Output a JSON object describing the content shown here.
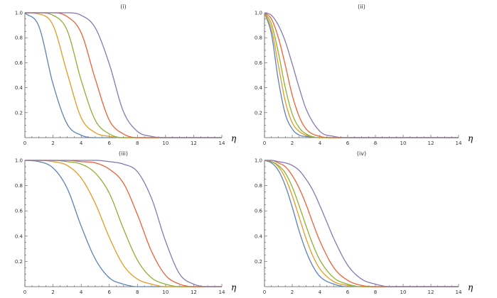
{
  "chart_data": [
    {
      "type": "line",
      "title": "(i)",
      "xlabel": "η",
      "ylabel": "",
      "xlim": [
        0,
        14
      ],
      "ylim": [
        0,
        1
      ],
      "x_ticks": [
        "0",
        "2",
        "4",
        "6",
        "8",
        "10",
        "12",
        "14"
      ],
      "y_ticks": [
        "0.2",
        "0.4",
        "0.6",
        "0.8",
        "1.0"
      ],
      "grid": false,
      "series": [
        {
          "name": "s1",
          "color": "#5e81b5",
          "x": [
            0,
            1,
            2,
            3,
            4,
            5,
            6,
            7,
            8,
            9,
            10,
            11,
            12,
            13,
            14
          ],
          "values": [
            1.0,
            0.89,
            0.43,
            0.11,
            0.02,
            0.0,
            0,
            0,
            0,
            0,
            0,
            0,
            0,
            0,
            0
          ]
        },
        {
          "name": "s2",
          "color": "#e19c24",
          "x": [
            0,
            1,
            2,
            3,
            4,
            5,
            6,
            7,
            8,
            9,
            10,
            11,
            12,
            13,
            14
          ],
          "values": [
            1.0,
            0.99,
            0.9,
            0.52,
            0.16,
            0.04,
            0.01,
            0,
            0,
            0,
            0,
            0,
            0,
            0,
            0
          ]
        },
        {
          "name": "s3",
          "color": "#8fb032",
          "x": [
            0,
            1,
            2,
            3,
            4,
            5,
            6,
            7,
            8,
            9,
            10,
            11,
            12,
            13,
            14
          ],
          "values": [
            1.0,
            1.0,
            0.98,
            0.86,
            0.46,
            0.14,
            0.03,
            0.0,
            0,
            0,
            0,
            0,
            0,
            0,
            0
          ]
        },
        {
          "name": "s4",
          "color": "#eb6235",
          "x": [
            0,
            1,
            2,
            3,
            4,
            5,
            6,
            7,
            8,
            9,
            10,
            11,
            12,
            13,
            14
          ],
          "values": [
            1.0,
            1.0,
            1.0,
            0.97,
            0.84,
            0.47,
            0.14,
            0.03,
            0.0,
            0,
            0,
            0,
            0,
            0,
            0
          ]
        },
        {
          "name": "s5",
          "color": "#8778b3",
          "x": [
            0,
            1,
            2,
            3,
            4,
            5,
            6,
            7,
            8,
            9,
            10,
            11,
            12,
            13,
            14
          ],
          "values": [
            1.0,
            1.0,
            1.0,
            1.0,
            0.98,
            0.88,
            0.59,
            0.21,
            0.05,
            0.01,
            0,
            0,
            0,
            0,
            0
          ]
        }
      ]
    },
    {
      "type": "line",
      "title": "(ii)",
      "xlabel": "η",
      "ylabel": "",
      "xlim": [
        0,
        14
      ],
      "ylim": [
        0,
        1
      ],
      "x_ticks": [
        "0",
        "2",
        "4",
        "6",
        "8",
        "10",
        "12",
        "14"
      ],
      "y_ticks": [
        "0.2",
        "0.4",
        "0.6",
        "0.8",
        "1.0"
      ],
      "grid": false,
      "series": [
        {
          "name": "s1",
          "color": "#5e81b5",
          "x": [
            0,
            0.5,
            1,
            1.5,
            2,
            2.5,
            3,
            4,
            5,
            6,
            14
          ],
          "values": [
            1.0,
            0.83,
            0.46,
            0.19,
            0.07,
            0.02,
            0.01,
            0,
            0,
            0,
            0
          ]
        },
        {
          "name": "s2",
          "color": "#e19c24",
          "x": [
            0,
            0.5,
            1,
            1.5,
            2,
            2.5,
            3,
            4,
            5,
            6,
            14
          ],
          "values": [
            1.0,
            0.87,
            0.58,
            0.29,
            0.12,
            0.05,
            0.02,
            0,
            0,
            0,
            0
          ]
        },
        {
          "name": "s3",
          "color": "#8fb032",
          "x": [
            0,
            0.5,
            1,
            1.5,
            2,
            2.5,
            3,
            4,
            5,
            6,
            14
          ],
          "values": [
            1.0,
            0.91,
            0.68,
            0.4,
            0.19,
            0.08,
            0.03,
            0.0,
            0,
            0,
            0
          ]
        },
        {
          "name": "s4",
          "color": "#eb6235",
          "x": [
            0,
            0.5,
            1,
            1.5,
            2,
            2.5,
            3,
            4,
            5,
            6,
            14
          ],
          "values": [
            1.0,
            0.95,
            0.8,
            0.58,
            0.34,
            0.17,
            0.07,
            0.01,
            0,
            0,
            0
          ]
        },
        {
          "name": "s5",
          "color": "#8778b3",
          "x": [
            0,
            0.5,
            1,
            1.5,
            2,
            2.5,
            3,
            4,
            5,
            6,
            14
          ],
          "values": [
            1.0,
            0.98,
            0.9,
            0.77,
            0.59,
            0.4,
            0.23,
            0.05,
            0.01,
            0,
            0
          ]
        }
      ]
    },
    {
      "type": "line",
      "title": "(iii)",
      "xlabel": "η",
      "ylabel": "",
      "xlim": [
        0,
        14
      ],
      "ylim": [
        0,
        1
      ],
      "x_ticks": [
        "0",
        "2",
        "4",
        "6",
        "8",
        "10",
        "12",
        "14"
      ],
      "y_ticks": [
        "0.2",
        "0.4",
        "0.6",
        "0.8",
        "1.0"
      ],
      "grid": false,
      "series": [
        {
          "name": "s1",
          "color": "#5e81b5",
          "x": [
            0,
            1,
            2,
            3,
            4,
            5,
            6,
            7,
            8,
            9,
            10,
            11,
            12,
            13,
            14
          ],
          "values": [
            1.0,
            0.99,
            0.94,
            0.78,
            0.48,
            0.22,
            0.07,
            0.02,
            0.0,
            0,
            0,
            0,
            0,
            0,
            0
          ]
        },
        {
          "name": "s2",
          "color": "#e19c24",
          "x": [
            0,
            1,
            2,
            3,
            4,
            5,
            6,
            7,
            8,
            9,
            10,
            11,
            12,
            13,
            14
          ],
          "values": [
            1.0,
            1.0,
            0.99,
            0.96,
            0.86,
            0.66,
            0.39,
            0.17,
            0.06,
            0.02,
            0.0,
            0,
            0,
            0,
            0
          ]
        },
        {
          "name": "s3",
          "color": "#8fb032",
          "x": [
            0,
            1,
            2,
            3,
            4,
            5,
            6,
            7,
            8,
            9,
            10,
            11,
            12,
            13,
            14
          ],
          "values": [
            1.0,
            1.0,
            1.0,
            0.99,
            0.97,
            0.9,
            0.74,
            0.46,
            0.21,
            0.07,
            0.02,
            0.0,
            0,
            0,
            0
          ]
        },
        {
          "name": "s4",
          "color": "#eb6235",
          "x": [
            0,
            1,
            2,
            3,
            4,
            5,
            6,
            7,
            8,
            9,
            10,
            11,
            12,
            13,
            14
          ],
          "values": [
            1.0,
            1.0,
            1.0,
            1.0,
            0.99,
            0.98,
            0.93,
            0.82,
            0.57,
            0.28,
            0.09,
            0.02,
            0.0,
            0,
            0
          ]
        },
        {
          "name": "s5",
          "color": "#8778b3",
          "x": [
            0,
            1,
            2,
            3,
            4,
            5,
            6,
            7,
            8,
            9,
            10,
            11,
            12,
            13,
            14
          ],
          "values": [
            1.0,
            1.0,
            1.0,
            1.0,
            1.0,
            1.0,
            0.99,
            0.97,
            0.91,
            0.7,
            0.36,
            0.1,
            0.02,
            0.0,
            0
          ]
        }
      ]
    },
    {
      "type": "line",
      "title": "(iv)",
      "xlabel": "η",
      "ylabel": "",
      "xlim": [
        0,
        14
      ],
      "ylim": [
        0,
        1
      ],
      "x_ticks": [
        "0",
        "2",
        "4",
        "6",
        "8",
        "10",
        "12",
        "14"
      ],
      "y_ticks": [
        "0.2",
        "0.4",
        "0.6",
        "0.8",
        "1.0"
      ],
      "grid": false,
      "series": [
        {
          "name": "s1",
          "color": "#5e81b5",
          "x": [
            0,
            0.5,
            1,
            1.5,
            2,
            2.5,
            3,
            3.5,
            4,
            5,
            6,
            7,
            8,
            14
          ],
          "values": [
            1.0,
            0.98,
            0.92,
            0.8,
            0.63,
            0.44,
            0.28,
            0.16,
            0.08,
            0.02,
            0,
            0,
            0,
            0
          ]
        },
        {
          "name": "s2",
          "color": "#e19c24",
          "x": [
            0,
            0.5,
            1,
            1.5,
            2,
            2.5,
            3,
            3.5,
            4,
            5,
            6,
            7,
            8,
            14
          ],
          "values": [
            1.0,
            0.99,
            0.95,
            0.86,
            0.72,
            0.55,
            0.38,
            0.24,
            0.14,
            0.04,
            0.01,
            0,
            0,
            0
          ]
        },
        {
          "name": "s3",
          "color": "#8fb032",
          "x": [
            0,
            0.5,
            1,
            1.5,
            2,
            2.5,
            3,
            3.5,
            4,
            5,
            6,
            7,
            8,
            14
          ],
          "values": [
            1.0,
            0.99,
            0.96,
            0.9,
            0.79,
            0.64,
            0.48,
            0.33,
            0.21,
            0.07,
            0.02,
            0,
            0,
            0
          ]
        },
        {
          "name": "s4",
          "color": "#eb6235",
          "x": [
            0,
            0.5,
            1,
            1.5,
            2,
            2.5,
            3,
            3.5,
            4,
            5,
            6,
            7,
            8,
            14
          ],
          "values": [
            1.0,
            1.0,
            0.98,
            0.95,
            0.88,
            0.78,
            0.65,
            0.5,
            0.36,
            0.15,
            0.05,
            0.01,
            0,
            0
          ]
        },
        {
          "name": "s5",
          "color": "#8778b3",
          "x": [
            0,
            0.5,
            1,
            1.5,
            2,
            2.5,
            3,
            3.5,
            4,
            4.5,
            5,
            6,
            7,
            8,
            9,
            14
          ],
          "values": [
            1.0,
            1.0,
            0.99,
            0.98,
            0.96,
            0.92,
            0.85,
            0.76,
            0.64,
            0.51,
            0.38,
            0.17,
            0.06,
            0.02,
            0.0,
            0
          ]
        }
      ]
    }
  ]
}
